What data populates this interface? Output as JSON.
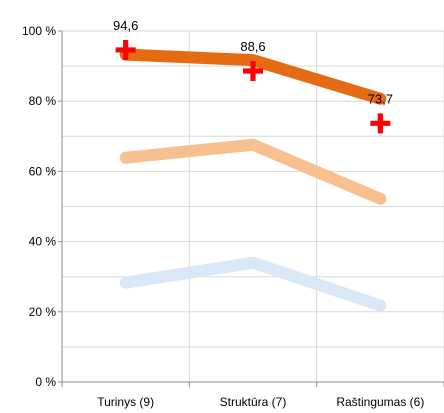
{
  "chart_data": {
    "type": "line",
    "categories": [
      "Turinys (9)",
      "Struktūra (7)",
      "Raštingumas (6)"
    ],
    "ylim": [
      0,
      100
    ],
    "yticks": [
      0,
      20,
      40,
      60,
      80,
      100
    ],
    "ytick_labels": [
      "0 %",
      "20 %",
      "40 %",
      "60 %",
      "80 %",
      "100 %"
    ],
    "grid": true,
    "xlabel": "",
    "ylabel": "",
    "title": "",
    "series": [
      {
        "values": [
          28.3,
          34.0,
          21.8
        ],
        "color": "#dae7f7",
        "marker": "none"
      },
      {
        "values": [
          63.9,
          67.6,
          52.2
        ],
        "color": "#f9c08f",
        "marker": "none"
      },
      {
        "values": [
          93.3,
          91.7,
          80.7
        ],
        "color": "#e46b13",
        "marker": "none"
      },
      {
        "values": [
          94.6,
          88.6,
          73.7
        ],
        "color": "#ff0000",
        "marker": "cross",
        "line": false,
        "data_labels": [
          "94,6",
          "88,6",
          "73,7"
        ]
      }
    ]
  }
}
